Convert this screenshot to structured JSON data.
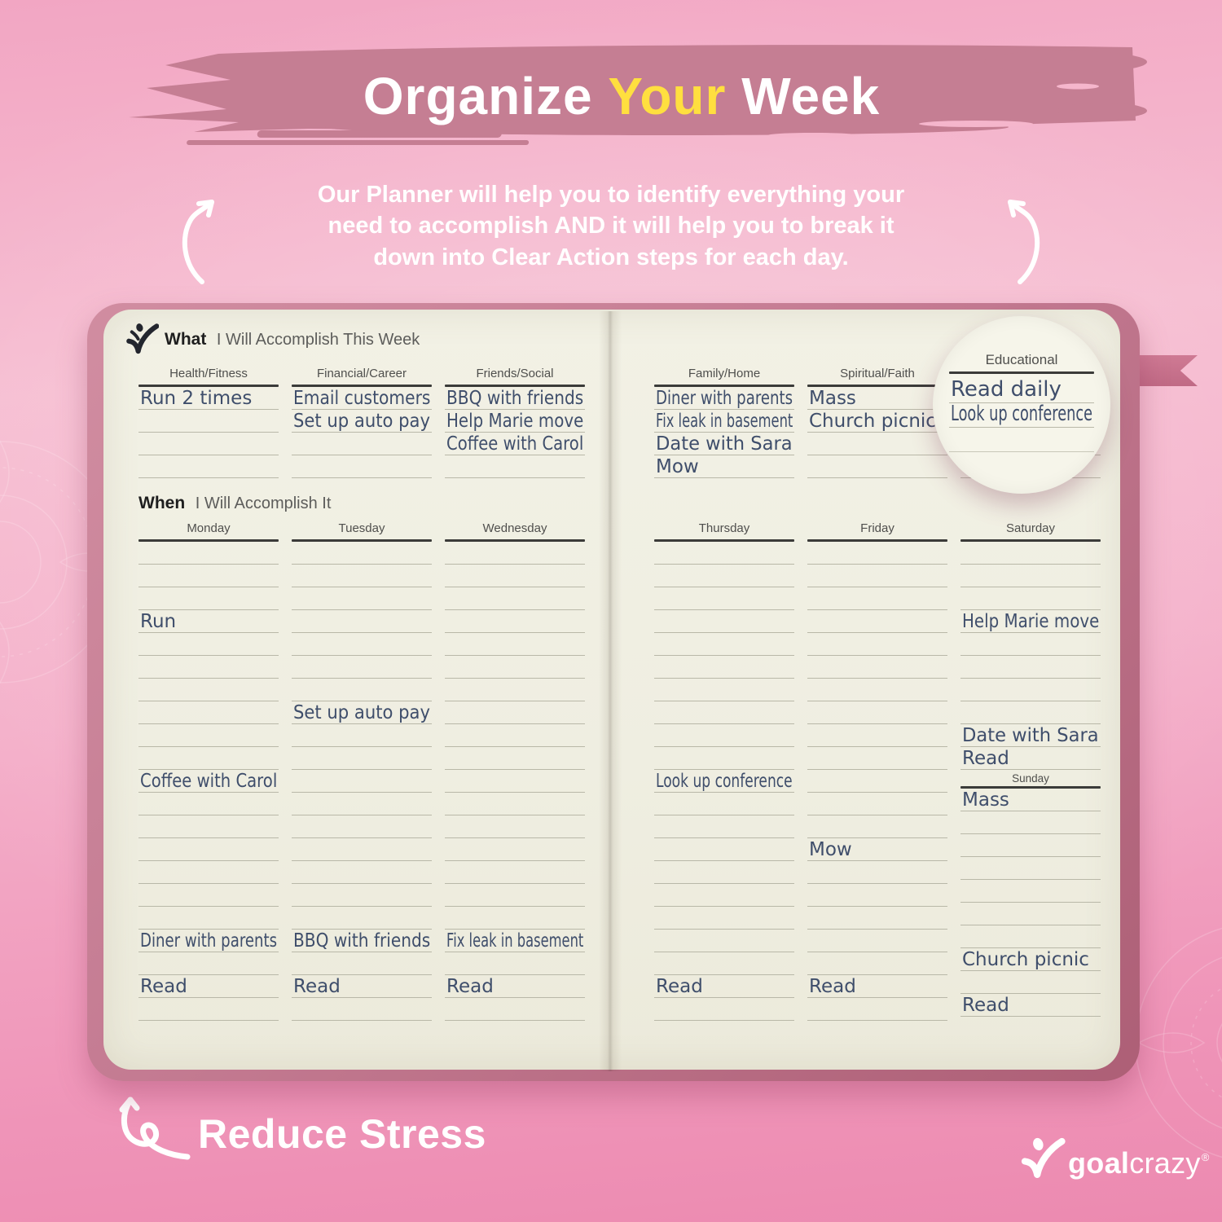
{
  "header": {
    "title_segments": [
      {
        "text": "Organize ",
        "color": "#ffffff"
      },
      {
        "text": "Your",
        "color": "#ffdf3f"
      },
      {
        "text": " Week",
        "color": "#ffffff"
      }
    ],
    "subtitle_lines": [
      [
        {
          "text": "Our ",
          "bold": false
        },
        {
          "text": "Planner",
          "bold": true
        },
        {
          "text": " will help you to identify everything your",
          "bold": false
        }
      ],
      [
        {
          "text": "need to accomplish AND it will help you to break it",
          "bold": false
        }
      ],
      [
        {
          "text": "down into ",
          "bold": false
        },
        {
          "text": "Clear Action",
          "bold": true
        },
        {
          "text": " steps for each day.",
          "bold": false
        }
      ]
    ]
  },
  "planner": {
    "left_page": {
      "what_title_bold": "What",
      "what_title_rest": " I Will Accomplish This Week",
      "when_title_bold": "When",
      "when_title_rest": " I Will Accomplish It",
      "what_columns": [
        {
          "label": "Health/Fitness",
          "entries": [
            {
              "line": 1,
              "text": "Run 2 times"
            }
          ]
        },
        {
          "label": "Financial/Career",
          "entries": [
            {
              "line": 1,
              "text": "Email customers"
            },
            {
              "line": 2,
              "text": "Set up auto pay"
            }
          ]
        },
        {
          "label": "Friends/Social",
          "entries": [
            {
              "line": 1,
              "text": "BBQ with friends"
            },
            {
              "line": 2,
              "text": "Help Marie move"
            },
            {
              "line": 3,
              "text": "Coffee with Carol"
            }
          ]
        }
      ],
      "when_columns": [
        {
          "label": "Monday",
          "entries": [
            {
              "line": 4,
              "text": "Run"
            },
            {
              "line": 11,
              "text": "Coffee with Carol"
            },
            {
              "line": 18,
              "text": "Diner with parents"
            },
            {
              "line": 20,
              "text": "Read"
            }
          ]
        },
        {
          "label": "Tuesday",
          "entries": [
            {
              "line": 8,
              "text": "Set up auto pay"
            },
            {
              "line": 18,
              "text": "BBQ with friends"
            },
            {
              "line": 20,
              "text": "Read"
            }
          ]
        },
        {
          "label": "Wednesday",
          "entries": [
            {
              "line": 18,
              "text": "Fix leak in basement"
            },
            {
              "line": 20,
              "text": "Read"
            }
          ]
        }
      ]
    },
    "right_page": {
      "what_columns": [
        {
          "label": "Family/Home",
          "entries": [
            {
              "line": 1,
              "text": "Diner with parents"
            },
            {
              "line": 2,
              "text": "Fix leak in basement"
            },
            {
              "line": 3,
              "text": "Date with Sara"
            },
            {
              "line": 4,
              "text": "Mow"
            }
          ]
        },
        {
          "label": "Spiritual/Faith",
          "entries": [
            {
              "line": 1,
              "text": "Mass"
            },
            {
              "line": 2,
              "text": "Church picnic"
            }
          ]
        },
        {
          "label": "Educational",
          "entries": [
            {
              "line": 1,
              "text": "Read daily"
            },
            {
              "line": 2,
              "text": "Look up conference"
            }
          ]
        }
      ],
      "when_columns": [
        {
          "label": "Thursday",
          "entries": [
            {
              "line": 11,
              "text": "Look up conference"
            },
            {
              "line": 20,
              "text": "Read"
            }
          ]
        },
        {
          "label": "Friday",
          "entries": [
            {
              "line": 14,
              "text": "Mow"
            },
            {
              "line": 20,
              "text": "Read"
            }
          ]
        },
        {
          "label": "Saturday",
          "entries": [
            {
              "line": 4,
              "text": "Help Marie move"
            },
            {
              "line": 9,
              "text": "Date with Sara"
            },
            {
              "line": 10,
              "text": "Read"
            }
          ],
          "sub_label": "Sunday",
          "sub_entries": [
            {
              "line": 1,
              "text": "Mass"
            },
            {
              "line": 8,
              "text": "Church picnic"
            },
            {
              "line": 10,
              "text": "Read"
            }
          ]
        }
      ]
    }
  },
  "footer": {
    "tagline": "Reduce Stress",
    "brand_bold": "goal",
    "brand_regular": "crazy",
    "brand_reg_mark": "®"
  },
  "colors": {
    "background_pink": "#f4afc9",
    "brush_stroke": "#c57e93",
    "accent_yellow": "#ffdf3f",
    "book_cover": "#c47b92",
    "page_cream": "#efeee1",
    "handwriting_ink": "#3f4e6b",
    "printed_text": "#4f4f4d",
    "ribbon_pink": "#c86f8a"
  }
}
